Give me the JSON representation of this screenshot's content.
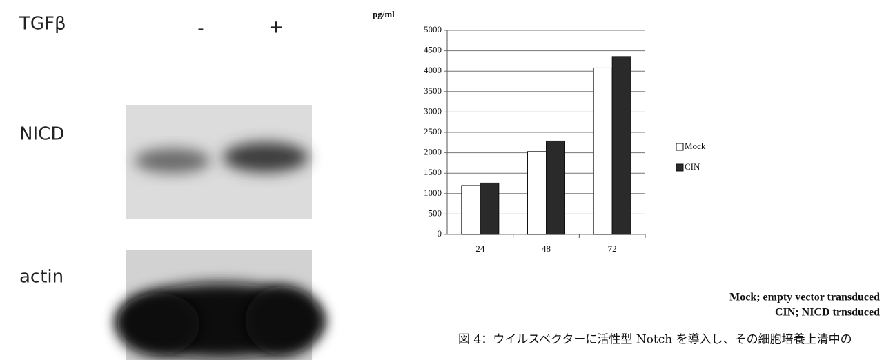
{
  "blot": {
    "treatment_label": "TGFβ",
    "lanes": [
      "-",
      "+"
    ],
    "rows": [
      "NICD",
      "actin"
    ]
  },
  "chart_data": {
    "type": "bar",
    "y_label": "pg/ml",
    "categories": [
      "24",
      "48",
      "72"
    ],
    "series": [
      {
        "name": "Mock",
        "color": "#ffffff",
        "values": [
          1200,
          2030,
          4080
        ]
      },
      {
        "name": "CIN",
        "color": "#2a2a2a",
        "values": [
          1260,
          2290,
          4360
        ]
      }
    ],
    "ylim": [
      0,
      5000
    ],
    "yticks": [
      0,
      500,
      1000,
      1500,
      2000,
      2500,
      3000,
      3500,
      4000,
      4500,
      5000
    ],
    "grid": true
  },
  "notes": [
    "Mock; empty vector transduced",
    "CIN; NICD trnsduced"
  ],
  "caption": "図 4：ウイルスベクターに活性型 Notch を導入し、その細胞培養上清中の"
}
